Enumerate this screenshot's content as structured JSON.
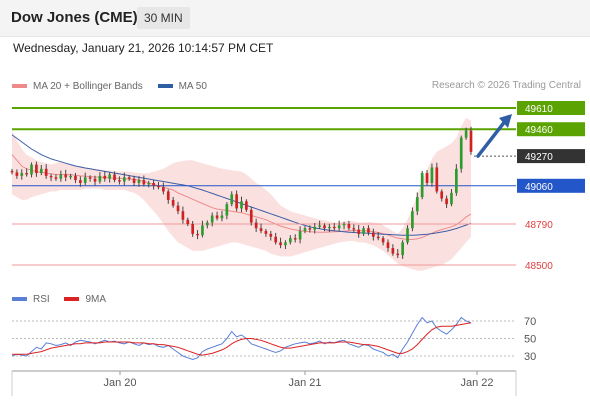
{
  "header": {
    "title": "Dow Jones (CME)",
    "timeframe": "30 MIN"
  },
  "datetime": "Wednesday, January 21, 2026 10:14:57 PM CET",
  "legend": {
    "ma20_label": "MA 20 + Bollinger Bands",
    "ma50_label": "MA 50"
  },
  "copyright": "Research © 2026 Trading Central",
  "indicator_legend": {
    "rsi_label": "RSI",
    "ma_label": "9MA"
  },
  "colors": {
    "resistance": "#5aa300",
    "support": "#2356c8",
    "pivot": "#333333",
    "target": "#e04040",
    "candle_up": "#2e9b2e",
    "candle_down": "#cc2222",
    "bands": "#fbe0e0",
    "ma20": "#ef8a8a",
    "ma50": "#3c5fa8",
    "rsi": "#5a7fd6",
    "rsi_ma": "#dd2222",
    "arrow": "#2f5ea6"
  },
  "chart_data": {
    "type": "candlestick",
    "x_tick_labels": [
      "Jan 20",
      "Jan 21",
      "Jan 22"
    ],
    "levels": [
      {
        "value": 49610,
        "label": "49610",
        "kind": "resistance"
      },
      {
        "value": 49460,
        "label": "49460",
        "kind": "resistance"
      },
      {
        "value": 49270,
        "label": "49270",
        "kind": "pivot"
      },
      {
        "value": 49060,
        "label": "49060",
        "kind": "support"
      },
      {
        "value": 48790,
        "label": "48790",
        "kind": "target"
      },
      {
        "value": 48500,
        "label": "48500",
        "kind": "target"
      }
    ],
    "close_series": [
      49155,
      49130,
      49150,
      49140,
      49210,
      49150,
      49180,
      49130,
      49120,
      49110,
      49140,
      49120,
      49130,
      49100,
      49080,
      49120,
      49110,
      49090,
      49130,
      49110,
      49140,
      49100,
      49090,
      49120,
      49110,
      49080,
      49100,
      49070,
      49080,
      49060,
      49050,
      49020,
      48960,
      48920,
      48880,
      48820,
      48790,
      48720,
      48710,
      48780,
      48800,
      48850,
      48830,
      48850,
      48930,
      49000,
      48900,
      48950,
      48890,
      48800,
      48760,
      48740,
      48720,
      48700,
      48660,
      48640,
      48660,
      48690,
      48680,
      48740,
      48760,
      48750,
      48770,
      48780,
      48760,
      48770,
      48760,
      48780,
      48790,
      48760,
      48750,
      48720,
      48760,
      48730,
      48700,
      48690,
      48660,
      48620,
      48580,
      48570,
      48660,
      48760,
      48880,
      48980,
      49150,
      49080,
      49190,
      49020,
      48970,
      48930,
      49010,
      49180,
      49400,
      49450,
      49300
    ],
    "bollinger_upper": [
      49450,
      49380,
      49320,
      49280,
      49260,
      49240,
      49230,
      49220,
      49210,
      49220,
      49230,
      49220,
      49210,
      49200,
      49200,
      49190,
      49185,
      49180,
      49175,
      49170,
      49170,
      49165,
      49160,
      49160,
      49160,
      49155,
      49150,
      49150,
      49150,
      49160,
      49170,
      49180,
      49200,
      49220,
      49230,
      49235,
      49240,
      49240,
      49230,
      49220,
      49210,
      49200,
      49190,
      49180,
      49175,
      49170,
      49165,
      49160,
      49140,
      49110,
      49080,
      49060,
      49030,
      49000,
      48960,
      48920,
      48900,
      48880,
      48870,
      48860,
      48850,
      48840,
      48830,
      48820,
      48815,
      48810,
      48800,
      48800,
      48810,
      48815,
      48810,
      48800,
      48800,
      48805,
      48800,
      48795,
      48780,
      48760,
      48740,
      48720,
      48760,
      48820,
      48900,
      49000,
      49100,
      49180,
      49250,
      49300,
      49320,
      49340,
      49360,
      49400,
      49480,
      49540,
      49520
    ],
    "bollinger_lower": [
      49000,
      48980,
      48960,
      48960,
      48980,
      48990,
      49000,
      49010,
      49020,
      49020,
      49030,
      49030,
      49030,
      49030,
      49030,
      49040,
      49040,
      49040,
      49040,
      49030,
      49030,
      49030,
      49030,
      49030,
      49020,
      49010,
      48990,
      48960,
      48920,
      48880,
      48840,
      48790,
      48740,
      48700,
      48660,
      48640,
      48620,
      48600,
      48600,
      48600,
      48610,
      48620,
      48630,
      48640,
      48650,
      48660,
      48660,
      48650,
      48640,
      48630,
      48620,
      48610,
      48600,
      48580,
      48570,
      48560,
      48560,
      48560,
      48570,
      48580,
      48590,
      48600,
      48610,
      48620,
      48630,
      48640,
      48650,
      48660,
      48665,
      48670,
      48670,
      48660,
      48660,
      48650,
      48640,
      48620,
      48600,
      48570,
      48540,
      48510,
      48490,
      48480,
      48470,
      48460,
      48460,
      48470,
      48480,
      48490,
      48500,
      48520,
      48540,
      48580,
      48620,
      48660,
      48700
    ],
    "ma20": [
      49280,
      49240,
      49200,
      49180,
      49170,
      49160,
      49155,
      49150,
      49145,
      49140,
      49140,
      49140,
      49138,
      49135,
      49130,
      49128,
      49125,
      49122,
      49120,
      49118,
      49116,
      49114,
      49112,
      49110,
      49108,
      49105,
      49100,
      49090,
      49080,
      49070,
      49060,
      49050,
      49040,
      49030,
      49010,
      48995,
      48980,
      48965,
      48950,
      48935,
      48920,
      48905,
      48895,
      48890,
      48885,
      48880,
      48875,
      48870,
      48860,
      48850,
      48840,
      48830,
      48820,
      48805,
      48790,
      48775,
      48765,
      48755,
      48748,
      48742,
      48738,
      48735,
      48733,
      48732,
      48732,
      48733,
      48735,
      48737,
      48740,
      48742,
      48744,
      48743,
      48742,
      48740,
      48736,
      48730,
      48722,
      48712,
      48700,
      48690,
      48685,
      48680,
      48680,
      48685,
      48695,
      48710,
      48725,
      48740,
      48750,
      48760,
      48770,
      48785,
      48810,
      48840,
      48860
    ],
    "ma50": [
      49420,
      49395,
      49370,
      49345,
      49320,
      49300,
      49280,
      49265,
      49250,
      49240,
      49230,
      49220,
      49210,
      49200,
      49193,
      49186,
      49180,
      49174,
      49168,
      49162,
      49156,
      49150,
      49144,
      49138,
      49132,
      49126,
      49120,
      49114,
      49108,
      49102,
      49096,
      49090,
      49084,
      49078,
      49072,
      49066,
      49060,
      49050,
      49040,
      49030,
      49018,
      49006,
      48994,
      48982,
      48970,
      48958,
      48946,
      48934,
      48922,
      48910,
      48898,
      48886,
      48874,
      48862,
      48850,
      48838,
      48826,
      48814,
      48802,
      48790,
      48780,
      48770,
      48762,
      48756,
      48750,
      48746,
      48742,
      48738,
      48735,
      48732,
      48730,
      48728,
      48726,
      48724,
      48722,
      48720,
      48718,
      48716,
      48714,
      48712,
      48710,
      48710,
      48710,
      48712,
      48715,
      48718,
      48722,
      48727,
      48733,
      48740,
      48748,
      48758,
      48770,
      48782,
      48795
    ],
    "rsi": {
      "levels": [
        70,
        50,
        30
      ],
      "values": [
        30,
        32,
        31,
        30,
        35,
        40,
        38,
        45,
        44,
        42,
        43,
        45,
        42,
        46,
        48,
        47,
        46,
        44,
        46,
        48,
        46,
        47,
        45,
        44,
        46,
        44,
        42,
        45,
        43,
        44,
        41,
        40,
        42,
        38,
        34,
        30,
        28,
        26,
        28,
        35,
        38,
        40,
        42,
        44,
        50,
        58,
        52,
        54,
        50,
        44,
        42,
        40,
        38,
        36,
        34,
        36,
        40,
        42,
        44,
        45,
        46,
        44,
        45,
        47,
        44,
        46,
        45,
        47,
        48,
        44,
        42,
        40,
        43,
        42,
        38,
        36,
        34,
        30,
        32,
        28,
        38,
        46,
        56,
        66,
        74,
        68,
        70,
        62,
        58,
        55,
        60,
        66,
        74,
        70,
        68
      ],
      "ma": [
        32,
        32,
        32,
        32,
        33,
        34,
        35,
        37,
        39,
        40,
        41,
        42,
        43,
        44,
        44,
        45,
        45,
        45,
        45,
        46,
        46,
        46,
        46,
        46,
        46,
        45,
        45,
        45,
        44,
        44,
        43,
        43,
        42,
        41,
        40,
        38,
        36,
        34,
        32,
        31,
        32,
        33,
        35,
        37,
        40,
        44,
        47,
        49,
        50,
        50,
        49,
        48,
        46,
        44,
        42,
        40,
        39,
        39,
        40,
        41,
        42,
        43,
        44,
        45,
        45,
        45,
        45,
        46,
        46,
        46,
        45,
        44,
        43,
        43,
        42,
        41,
        39,
        37,
        35,
        33,
        33,
        35,
        38,
        43,
        49,
        55,
        60,
        63,
        64,
        64,
        64,
        65,
        66,
        67,
        68
      ]
    }
  }
}
